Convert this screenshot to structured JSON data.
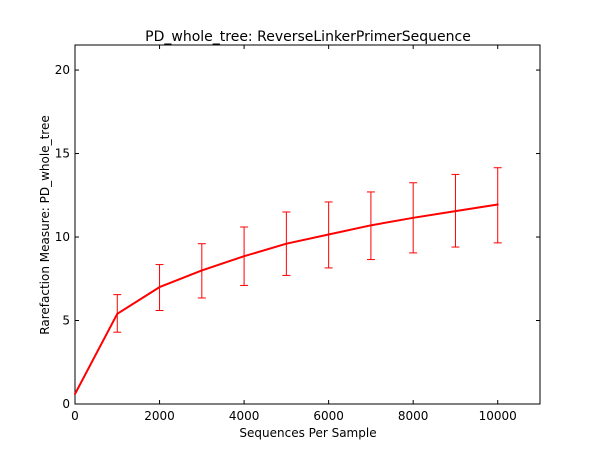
{
  "chart_data": {
    "type": "line",
    "title": "PD_whole_tree: ReverseLinkerPrimerSequence",
    "xlabel": "Sequences Per Sample",
    "ylabel": "Rarefaction Measure: PD_whole_tree",
    "xlim": [
      0,
      11000
    ],
    "ylim": [
      0,
      21.5
    ],
    "xticks": [
      0,
      2000,
      4000,
      6000,
      8000,
      10000
    ],
    "yticks": [
      0,
      5,
      10,
      15,
      20
    ],
    "grid": false,
    "series": [
      {
        "color": "#ff0000",
        "x": [
          0,
          1000,
          2000,
          3000,
          4000,
          5000,
          6000,
          7000,
          8000,
          9000,
          10000
        ],
        "y": [
          0.6,
          5.4,
          7.0,
          8.0,
          8.85,
          9.6,
          10.15,
          10.7,
          11.15,
          11.55,
          11.95
        ],
        "err_low": [
          null,
          4.3,
          5.6,
          6.35,
          7.1,
          7.7,
          8.15,
          8.65,
          9.05,
          9.4,
          9.65
        ],
        "err_high": [
          null,
          6.55,
          8.35,
          9.6,
          10.6,
          11.5,
          12.1,
          12.7,
          13.25,
          13.75,
          14.15
        ]
      }
    ]
  }
}
